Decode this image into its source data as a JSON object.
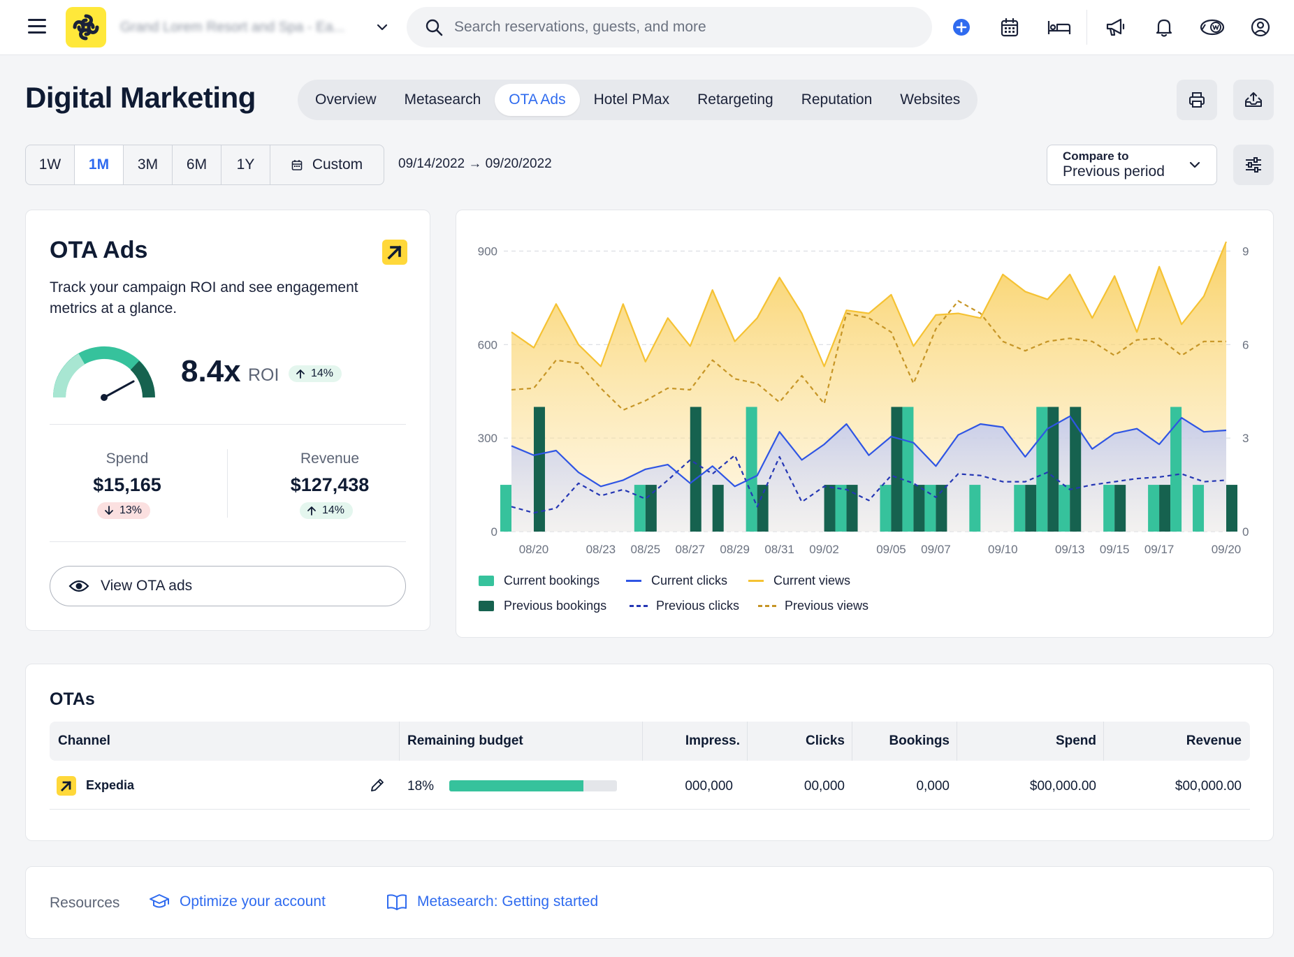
{
  "topbar": {
    "hotel_name": "Grand Lorem Resort and Spa - Ea...",
    "search_placeholder": "Search reservations, guests, and more",
    "icons": [
      "menu-icon",
      "brand-logo",
      "chevron-down-icon",
      "search-icon",
      "add-icon",
      "calendar-icon",
      "bed-icon",
      "megaphone-icon",
      "bell-icon",
      "partner-icon",
      "user-icon"
    ]
  },
  "header": {
    "title": "Digital Marketing",
    "tabs": [
      {
        "label": "Overview"
      },
      {
        "label": "Metasearch"
      },
      {
        "label": "OTA Ads",
        "active": true
      },
      {
        "label": "Hotel PMax"
      },
      {
        "label": "Retargeting"
      },
      {
        "label": "Reputation"
      },
      {
        "label": "Websites"
      }
    ]
  },
  "filters": {
    "periods": [
      "1W",
      "1M",
      "3M",
      "6M",
      "1Y",
      "Custom"
    ],
    "active_period": "1M",
    "date_range": "09/14/2022 → 09/20/2022",
    "compare_label": "Compare to",
    "compare_value": "Previous period"
  },
  "summary": {
    "title": "OTA Ads",
    "description": "Track your campaign ROI and see engagement metrics at a glance.",
    "roi_value": "8.4x",
    "roi_label": "ROI",
    "roi_change": "14%",
    "gauge_level": 0.84,
    "spend_label": "Spend",
    "spend_value": "$15,165",
    "spend_change": "13%",
    "revenue_label": "Revenue",
    "revenue_value": "$127,438",
    "revenue_change": "14%",
    "view_button": "View OTA ads"
  },
  "chart_data": {
    "type": "bar+line",
    "x": [
      "08/19",
      "08/20",
      "08/21",
      "08/22",
      "08/23",
      "08/24",
      "08/25",
      "08/26",
      "08/27",
      "08/28",
      "08/29",
      "08/30",
      "08/31",
      "09/01",
      "09/02",
      "09/03",
      "09/04",
      "09/05",
      "09/06",
      "09/07",
      "09/08",
      "09/09",
      "09/10",
      "09/11",
      "09/12",
      "09/13",
      "09/14",
      "09/15",
      "09/16",
      "09/17",
      "09/18",
      "09/19",
      "09/20"
    ],
    "x_tick_labels": [
      "08/20",
      "08/23",
      "08/25",
      "08/27",
      "08/29",
      "08/31",
      "09/02",
      "09/05",
      "09/07",
      "09/10",
      "09/13",
      "09/15",
      "09/17",
      "09/20"
    ],
    "y_left": {
      "ticks": [
        0,
        300,
        600,
        900
      ],
      "lim": [
        0,
        930
      ]
    },
    "y_right": {
      "ticks": [
        0,
        3,
        6,
        9
      ],
      "lim": [
        0,
        9.3
      ]
    },
    "series": [
      {
        "name": "Current bookings",
        "kind": "bar",
        "axis": "right",
        "color": "#36c29c",
        "values": [
          1.5,
          0,
          0,
          0,
          0,
          0,
          1.5,
          0,
          0,
          0,
          0,
          4,
          0,
          0,
          0,
          1.5,
          0,
          1.5,
          4,
          1.5,
          0,
          1.5,
          0,
          1.5,
          4,
          1.5,
          0,
          1.5,
          0,
          1.5,
          4,
          1.5,
          0
        ]
      },
      {
        "name": "Previous bookings",
        "kind": "bar",
        "axis": "right",
        "color": "#16624f",
        "values": [
          0,
          4,
          0,
          0,
          0,
          0,
          1.5,
          0,
          4,
          1.5,
          0,
          1.5,
          0,
          0,
          1.5,
          1.5,
          0,
          4,
          1.5,
          1.5,
          0,
          0,
          0,
          1.5,
          4,
          4,
          0,
          1.5,
          0,
          1.5,
          0,
          0,
          1.5
        ]
      },
      {
        "name": "Current clicks",
        "kind": "line",
        "axis": "left",
        "color": "#2f55e4",
        "values": [
          275,
          245,
          260,
          190,
          145,
          165,
          200,
          215,
          155,
          210,
          145,
          180,
          320,
          230,
          280,
          345,
          245,
          305,
          285,
          210,
          310,
          345,
          335,
          240,
          330,
          370,
          265,
          315,
          330,
          280,
          365,
          320,
          325
        ]
      },
      {
        "name": "Previous clicks",
        "kind": "line",
        "axis": "left",
        "color": "#2537b4",
        "dashed": true,
        "values": [
          80,
          60,
          75,
          155,
          115,
          135,
          105,
          165,
          230,
          185,
          245,
          80,
          240,
          95,
          145,
          135,
          100,
          180,
          155,
          110,
          185,
          180,
          160,
          160,
          190,
          135,
          150,
          160,
          170,
          175,
          185,
          160,
          165
        ]
      },
      {
        "name": "Current views",
        "kind": "line",
        "axis": "left",
        "color": "#f5c233",
        "area": true,
        "values": [
          640,
          590,
          730,
          600,
          530,
          730,
          545,
          685,
          595,
          775,
          610,
          685,
          815,
          700,
          530,
          710,
          700,
          760,
          595,
          695,
          700,
          685,
          825,
          770,
          745,
          825,
          685,
          820,
          640,
          850,
          665,
          755,
          930
        ]
      },
      {
        "name": "Previous views",
        "kind": "line",
        "axis": "left",
        "color": "#c69526",
        "dashed": true,
        "values": [
          455,
          460,
          550,
          540,
          460,
          390,
          420,
          460,
          455,
          550,
          490,
          475,
          415,
          500,
          410,
          700,
          685,
          640,
          475,
          650,
          740,
          700,
          610,
          580,
          610,
          620,
          610,
          565,
          615,
          620,
          565,
          610,
          610
        ]
      }
    ],
    "legend": [
      "Current bookings",
      "Current clicks",
      "Current views",
      "Previous bookings",
      "Previous clicks",
      "Previous views"
    ],
    "legend_position": "bottom-left",
    "grid": true
  },
  "otas": {
    "title": "OTAs",
    "columns": [
      "Channel",
      "Remaining budget",
      "Impress.",
      "Clicks",
      "Bookings",
      "Spend",
      "Revenue"
    ],
    "rows": [
      {
        "channel": "Expedia",
        "budget_pct": "18%",
        "budget_fill": 0.8,
        "impressions": "000,000",
        "clicks": "00,000",
        "bookings": "0,000",
        "spend": "$00,000.00",
        "revenue": "$00,000.00"
      }
    ]
  },
  "resources": {
    "label": "Resources",
    "links": [
      {
        "label": "Optimize your account",
        "icon": "graduation-cap-icon"
      },
      {
        "label": "Metasearch: Getting started",
        "icon": "book-icon"
      }
    ]
  }
}
